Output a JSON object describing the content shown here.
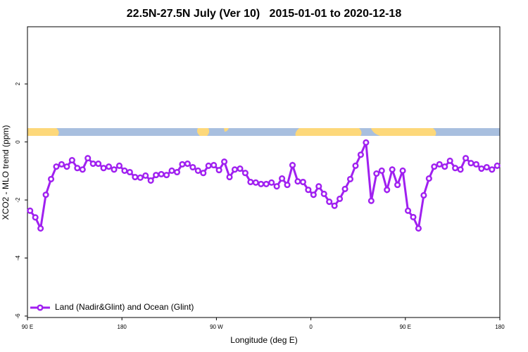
{
  "chart_data": {
    "type": "line",
    "title": "22.5N-27.5N July (Ver 10)   2015-01-01 to 2020-12-18",
    "xlabel": "Longitude (deg E)",
    "ylabel": "XCO2 - MLO trend (ppm)",
    "xlim": [
      90,
      540
    ],
    "ylim": [
      -6.05,
      3.97
    ],
    "xticks": [
      {
        "value": 90,
        "label": "90 E"
      },
      180,
      {
        "value": 270,
        "label": "90 W"
      },
      {
        "value": 360,
        "label": "0"
      },
      {
        "value": 450,
        "label": "90 E"
      },
      {
        "value": 540,
        "label": "180"
      }
    ],
    "yticks": [
      2,
      0,
      -2,
      -4,
      -6
    ],
    "legend": "lower left",
    "x": [
      92.5,
      97.5,
      102.5,
      107.5,
      112.5,
      117.5,
      122.5,
      127.5,
      132.5,
      137.5,
      142.5,
      147.5,
      152.5,
      157.5,
      162.5,
      167.5,
      172.5,
      177.5,
      182.5,
      187.5,
      192.5,
      197.5,
      202.5,
      207.5,
      212.5,
      217.5,
      222.5,
      227.5,
      232.5,
      237.5,
      242.5,
      247.5,
      252.5,
      257.5,
      262.5,
      267.5,
      272.5,
      277.5,
      282.5,
      287.5,
      292.5,
      297.5,
      302.5,
      307.5,
      312.5,
      317.5,
      322.5,
      327.5,
      332.5,
      337.5,
      342.5,
      347.5,
      352.5,
      357.5,
      362.5,
      367.5,
      372.5,
      377.5,
      382.5,
      387.5,
      392.5,
      397.5,
      402.5,
      407.5,
      412.5,
      417.5,
      422.5,
      427.5,
      432.5,
      437.5,
      442.5,
      447.5,
      452.5,
      457.5,
      462.5,
      467.5,
      472.5,
      477.5,
      482.5,
      487.5,
      492.5,
      497.5,
      502.5,
      507.5,
      512.5,
      517.5,
      522.5,
      527.5,
      532.5,
      537.5
    ],
    "series": [
      {
        "name": "Land (Nadir&Glint) and Ocean (Glint)",
        "color": "#a020f0",
        "values": [
          -2.37,
          -2.6,
          -2.98,
          -1.82,
          -1.28,
          -0.85,
          -0.77,
          -0.85,
          -0.63,
          -0.9,
          -0.95,
          -0.56,
          -0.75,
          -0.75,
          -0.9,
          -0.85,
          -0.95,
          -0.82,
          -0.99,
          -1.04,
          -1.21,
          -1.23,
          -1.16,
          -1.33,
          -1.14,
          -1.11,
          -1.14,
          -0.99,
          -1.04,
          -0.77,
          -0.75,
          -0.87,
          -0.99,
          -1.07,
          -0.82,
          -0.8,
          -0.97,
          -0.68,
          -1.21,
          -0.95,
          -0.92,
          -1.07,
          -1.38,
          -1.4,
          -1.45,
          -1.45,
          -1.4,
          -1.53,
          -1.26,
          -1.48,
          -0.8,
          -1.36,
          -1.38,
          -1.65,
          -1.82,
          -1.53,
          -1.79,
          -2.06,
          -2.2,
          -1.96,
          -1.62,
          -1.28,
          -0.82,
          -0.44,
          -0.02,
          -2.03,
          -1.09,
          -0.99,
          -1.65,
          -0.95,
          -1.48,
          -0.99,
          -2.37,
          -2.59,
          -2.98,
          -1.84,
          -1.26,
          -0.85,
          -0.77,
          -0.85,
          -0.65,
          -0.9,
          -0.95,
          -0.56,
          -0.73,
          -0.77,
          -0.92,
          -0.87,
          -0.95,
          -0.82
        ]
      }
    ]
  }
}
